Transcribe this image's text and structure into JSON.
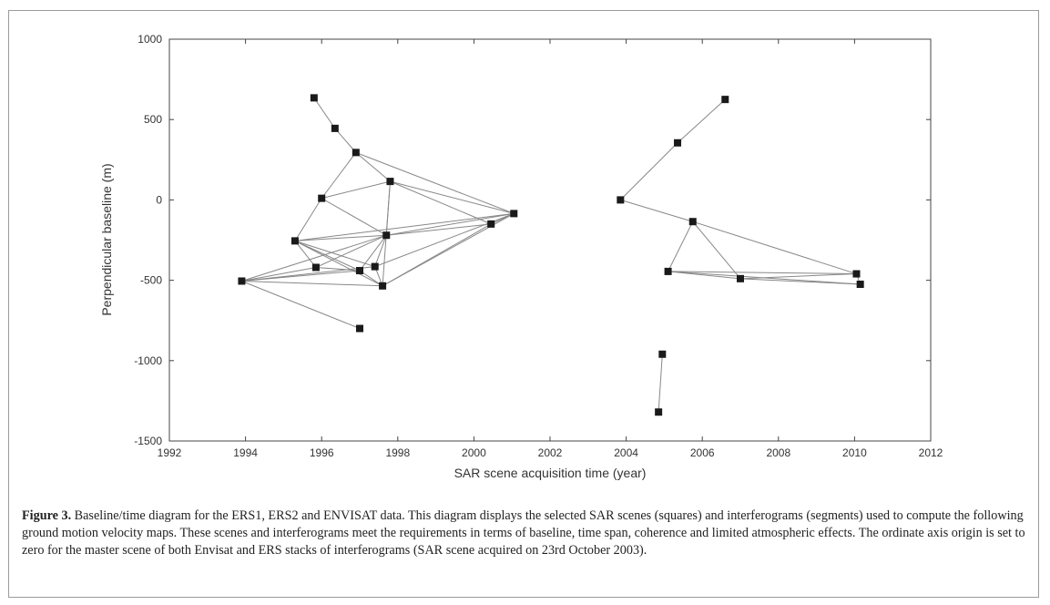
{
  "chart_data": {
    "type": "scatter",
    "xlabel": "SAR scene acquisition time (year)",
    "ylabel": "Perpendicular baseline (m)",
    "xlim": [
      1992,
      2012
    ],
    "ylim": [
      -1500,
      1000
    ],
    "x_ticks": [
      1992,
      1994,
      1996,
      1998,
      2000,
      2002,
      2004,
      2006,
      2008,
      2010,
      2012
    ],
    "y_ticks": [
      1000,
      500,
      0,
      -500,
      -1000,
      -1500
    ],
    "grid": false,
    "marker": "square",
    "marker_color": "#1a1a1a",
    "line_color": "#888888",
    "scenes": [
      {
        "x": 1993.9,
        "y": -505
      },
      {
        "x": 1995.3,
        "y": -255
      },
      {
        "x": 1995.8,
        "y": 635
      },
      {
        "x": 1995.85,
        "y": -420
      },
      {
        "x": 1996.0,
        "y": 10
      },
      {
        "x": 1996.35,
        "y": 445
      },
      {
        "x": 1996.9,
        "y": 295
      },
      {
        "x": 1997.0,
        "y": -440
      },
      {
        "x": 1997.0,
        "y": -800
      },
      {
        "x": 1997.4,
        "y": -415
      },
      {
        "x": 1997.6,
        "y": -535
      },
      {
        "x": 1997.7,
        "y": -220
      },
      {
        "x": 1997.8,
        "y": 115
      },
      {
        "x": 2000.45,
        "y": -150
      },
      {
        "x": 2001.05,
        "y": -85
      },
      {
        "x": 2003.85,
        "y": 0
      },
      {
        "x": 2004.85,
        "y": -1320
      },
      {
        "x": 2004.95,
        "y": -960
      },
      {
        "x": 2005.1,
        "y": -445
      },
      {
        "x": 2005.35,
        "y": 355
      },
      {
        "x": 2005.75,
        "y": -135
      },
      {
        "x": 2006.6,
        "y": 625
      },
      {
        "x": 2007.0,
        "y": -490
      },
      {
        "x": 2010.05,
        "y": -460
      },
      {
        "x": 2010.15,
        "y": -525
      }
    ],
    "interferograms": [
      [
        2,
        5
      ],
      [
        5,
        6
      ],
      [
        6,
        4
      ],
      [
        6,
        12
      ],
      [
        6,
        14
      ],
      [
        4,
        1
      ],
      [
        4,
        12
      ],
      [
        4,
        11
      ],
      [
        12,
        11
      ],
      [
        12,
        10
      ],
      [
        12,
        14
      ],
      [
        12,
        13
      ],
      [
        1,
        3
      ],
      [
        1,
        11
      ],
      [
        1,
        10
      ],
      [
        1,
        7
      ],
      [
        1,
        9
      ],
      [
        1,
        14
      ],
      [
        3,
        0
      ],
      [
        3,
        7
      ],
      [
        3,
        11
      ],
      [
        0,
        7
      ],
      [
        0,
        9
      ],
      [
        0,
        10
      ],
      [
        0,
        8
      ],
      [
        0,
        11
      ],
      [
        7,
        11
      ],
      [
        7,
        10
      ],
      [
        9,
        11
      ],
      [
        9,
        10
      ],
      [
        9,
        14
      ],
      [
        11,
        14
      ],
      [
        11,
        13
      ],
      [
        10,
        13
      ],
      [
        10,
        14
      ],
      [
        13,
        14
      ],
      [
        16,
        17
      ],
      [
        15,
        19
      ],
      [
        19,
        21
      ],
      [
        15,
        20
      ],
      [
        20,
        18
      ],
      [
        20,
        22
      ],
      [
        20,
        23
      ],
      [
        18,
        22
      ],
      [
        18,
        23
      ],
      [
        18,
        24
      ],
      [
        22,
        23
      ],
      [
        22,
        24
      ],
      [
        23,
        24
      ]
    ]
  },
  "caption": {
    "label": "Figure 3.",
    "text": " Baseline/time diagram for the ERS1, ERS2 and ENVISAT data. This diagram displays the selected SAR scenes (squares) and interferograms (segments) used to compute the following ground motion velocity maps. These scenes and interferograms meet the requirements in terms of baseline, time span, coherence and limited atmospheric effects. The ordinate axis origin is set to zero for the master scene of both Envisat and ERS stacks of interferograms (SAR scene acquired on 23rd October 2003)."
  }
}
